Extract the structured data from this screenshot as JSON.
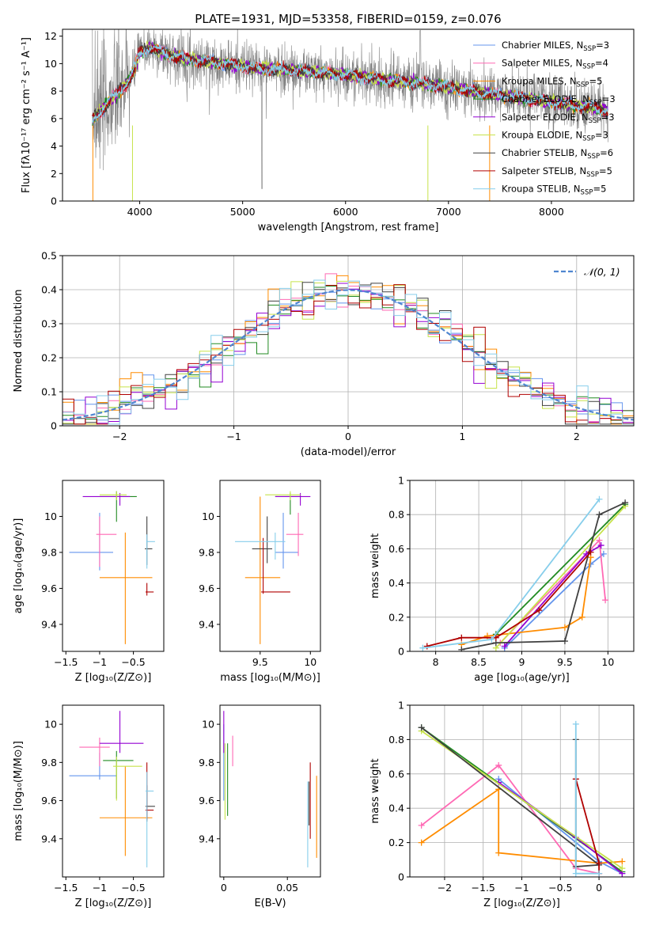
{
  "chart_data": [
    {
      "id": "spectrum",
      "type": "line",
      "title": "PLATE=1931, MJD=53358, FIBERID=0159, z=0.076",
      "xlabel": "wavelength [Angstrom, rest frame]",
      "ylabel": "Flux [fλ10⁻¹⁷ erg cm⁻² s⁻¹ A⁻¹]",
      "xlim": [
        3250,
        8800
      ],
      "ylim": [
        0,
        12.5
      ],
      "xticks": [
        4000,
        5000,
        6000,
        7000,
        8000
      ],
      "yticks": [
        0,
        2,
        4,
        6,
        8,
        10,
        12
      ],
      "grid": false,
      "legend_position": "upper-right",
      "data_color": "#808080",
      "continuum": {
        "x": [
          3540,
          3600,
          3700,
          3800,
          3900,
          3950,
          4000,
          4100,
          4200,
          4300,
          4500,
          4700,
          4900,
          5100,
          5300,
          5500,
          5800,
          6100,
          6400,
          6700,
          7000,
          7300,
          7600,
          7900,
          8200,
          8500,
          8550
        ],
        "y": [
          6.0,
          6.4,
          7.2,
          8.0,
          8.8,
          9.6,
          10.8,
          11.2,
          10.9,
          10.6,
          10.3,
          10.1,
          9.9,
          9.7,
          9.6,
          9.5,
          9.3,
          9.1,
          8.8,
          8.6,
          8.3,
          7.9,
          7.6,
          7.3,
          7.0,
          6.7,
          6.5
        ]
      },
      "series": [
        {
          "name": "Chabrier MILES, N_SSP=3",
          "color": "#6495ed"
        },
        {
          "name": "Salpeter MILES, N_SSP=4",
          "color": "#ff69b4"
        },
        {
          "name": "Kroupa MILES, N_SSP=5",
          "color": "#ff8c00"
        },
        {
          "name": "Chabrier ELODIE, N_SSP=3",
          "color": "#228b22"
        },
        {
          "name": "Salpeter ELODIE, N_SSP=3",
          "color": "#9400d3"
        },
        {
          "name": "Kroupa ELODIE, N_SSP=3",
          "color": "#c7e34b"
        },
        {
          "name": "Chabrier STELIB, N_SSP=6",
          "color": "#404040"
        },
        {
          "name": "Salpeter STELIB, N_SSP=5",
          "color": "#b00000"
        },
        {
          "name": "Kroupa STELIB, N_SSP=5",
          "color": "#87ceeb"
        }
      ]
    },
    {
      "id": "residuals",
      "type": "histogram",
      "xlabel": "(data-model)/error",
      "ylabel": "Normed distribution",
      "xlim": [
        -2.5,
        2.5
      ],
      "ylim": [
        0,
        0.5
      ],
      "xticks": [
        -2,
        -1,
        0,
        1,
        2
      ],
      "yticks": [
        0.0,
        0.1,
        0.2,
        0.3,
        0.4,
        0.5
      ],
      "grid": true,
      "legend_position": "upper-right",
      "legend_label": "𝒩(0, 1)",
      "bin_width": 0.1,
      "normal": {
        "mu": 0,
        "sigma": 1,
        "color": "#4f86d0"
      }
    },
    {
      "id": "age-vs-Z",
      "type": "errorbar",
      "xlabel": "Z [log₁₀(Z/Z⊙)]",
      "ylabel": "age  [log₁₀(age/yr)]",
      "xlim": [
        -1.55,
        -0.05
      ],
      "ylim": [
        9.25,
        10.2
      ],
      "xticks": [
        -1.5,
        -1.0,
        -0.5
      ],
      "yticks": [
        9.4,
        9.6,
        9.8,
        10.0
      ],
      "grid": false,
      "points": [
        {
          "x": -1.0,
          "y": 9.8,
          "xerr": [
            0.45,
            0.2
          ],
          "yerr": [
            0.1,
            0.22
          ],
          "color": "#6495ed"
        },
        {
          "x": -1.0,
          "y": 9.9,
          "xerr": [
            0.05,
            0.25
          ],
          "yerr": [
            0.18,
            0.1
          ],
          "color": "#ff69b4"
        },
        {
          "x": -0.62,
          "y": 9.66,
          "xerr": [
            0.38,
            0.4
          ],
          "yerr": [
            0.37,
            0.25
          ],
          "color": "#ff8c00"
        },
        {
          "x": -0.75,
          "y": 10.11,
          "xerr": [
            0.25,
            0.3
          ],
          "yerr": [
            0.14,
            0.03
          ],
          "color": "#228b22"
        },
        {
          "x": -0.7,
          "y": 10.11,
          "xerr": [
            0.55,
            0.15
          ],
          "yerr": [
            0.05,
            0.02
          ],
          "color": "#9400d3"
        },
        {
          "x": -0.75,
          "y": 10.12,
          "xerr": [
            0.25,
            0.15
          ],
          "yerr": [
            0.03,
            0.02
          ],
          "color": "#c7e34b"
        },
        {
          "x": -0.3,
          "y": 9.82,
          "xerr": [
            0.03,
            0.08
          ],
          "yerr": [
            0.09,
            0.18
          ],
          "color": "#404040"
        },
        {
          "x": -0.3,
          "y": 9.58,
          "xerr": [
            0.02,
            0.1
          ],
          "yerr": [
            0.02,
            0.05
          ],
          "color": "#b00000"
        },
        {
          "x": -0.3,
          "y": 9.86,
          "xerr": [
            0.01,
            0.12
          ],
          "yerr": [
            0.15,
            0.04
          ],
          "color": "#87ceeb"
        }
      ]
    },
    {
      "id": "age-vs-mass",
      "type": "errorbar",
      "xlabel": "mass [log₁₀(M/M⊙)]",
      "ylabel": "",
      "xlim": [
        9.1,
        10.1
      ],
      "ylim": [
        9.25,
        10.2
      ],
      "xticks": [
        9.5,
        10.0
      ],
      "yticks": [
        9.4,
        9.6,
        9.8,
        10.0
      ],
      "grid": false,
      "points": [
        {
          "x": 9.73,
          "y": 9.8,
          "xerr": [
            0.08,
            0.15
          ],
          "yerr": [
            0.09,
            0.22
          ],
          "color": "#6495ed"
        },
        {
          "x": 9.88,
          "y": 9.9,
          "xerr": [
            0.12,
            0.05
          ],
          "yerr": [
            0.12,
            0.12
          ],
          "color": "#ff69b4"
        },
        {
          "x": 9.5,
          "y": 9.66,
          "xerr": [
            0.15,
            0.2
          ],
          "yerr": [
            0.37,
            0.45
          ],
          "color": "#ff8c00"
        },
        {
          "x": 9.8,
          "y": 10.11,
          "xerr": [
            0.15,
            0.1
          ],
          "yerr": [
            0.1,
            0.02
          ],
          "color": "#228b22"
        },
        {
          "x": 9.9,
          "y": 10.11,
          "xerr": [
            0.25,
            0.1
          ],
          "yerr": [
            0.05,
            0.02
          ],
          "color": "#9400d3"
        },
        {
          "x": 9.8,
          "y": 10.12,
          "xerr": [
            0.25,
            0.1
          ],
          "yerr": [
            0.03,
            0.02
          ],
          "color": "#c7e34b"
        },
        {
          "x": 9.57,
          "y": 9.82,
          "xerr": [
            0.15,
            0.05
          ],
          "yerr": [
            0.08,
            0.18
          ],
          "color": "#404040"
        },
        {
          "x": 9.53,
          "y": 9.58,
          "xerr": [
            0.02,
            0.27
          ],
          "yerr": [
            0.01,
            0.3
          ],
          "color": "#b00000"
        },
        {
          "x": 9.65,
          "y": 9.86,
          "xerr": [
            0.4,
            0.1
          ],
          "yerr": [
            0.1,
            0.05
          ],
          "color": "#87ceeb"
        }
      ]
    },
    {
      "id": "weight-vs-age",
      "type": "line",
      "xlabel": "age  [log₁₀(age/yr)]",
      "ylabel": "mass weight",
      "xlim": [
        7.7,
        10.3
      ],
      "ylim": [
        0,
        1.0
      ],
      "xticks": [
        8.0,
        8.5,
        9.0,
        9.5,
        10.0
      ],
      "yticks": [
        0.0,
        0.2,
        0.4,
        0.6,
        0.8,
        1.0
      ],
      "grid": true,
      "series": [
        {
          "color": "#6495ed",
          "x": [
            8.8,
            9.8,
            9.95
          ],
          "y": [
            0.02,
            0.51,
            0.57
          ]
        },
        {
          "color": "#ff69b4",
          "x": [
            8.75,
            9.9,
            9.97
          ],
          "y": [
            0.05,
            0.65,
            0.3
          ]
        },
        {
          "color": "#ff8c00",
          "x": [
            8.3,
            8.6,
            9.5,
            9.7,
            9.8
          ],
          "y": [
            0.04,
            0.09,
            0.14,
            0.2,
            0.55
          ]
        },
        {
          "color": "#228b22",
          "x": [
            8.7,
            10.2
          ],
          "y": [
            0.1,
            0.86
          ]
        },
        {
          "color": "#9400d3",
          "x": [
            8.8,
            9.75,
            9.92
          ],
          "y": [
            0.03,
            0.57,
            0.62
          ]
        },
        {
          "color": "#c7e34b",
          "x": [
            8.7,
            10.2
          ],
          "y": [
            0.02,
            0.85
          ]
        },
        {
          "color": "#404040",
          "x": [
            8.3,
            8.7,
            9.5,
            9.9,
            10.2
          ],
          "y": [
            0.01,
            0.05,
            0.06,
            0.8,
            0.87
          ]
        },
        {
          "color": "#b00000",
          "x": [
            7.9,
            8.3,
            8.7,
            9.2,
            9.8
          ],
          "y": [
            0.03,
            0.08,
            0.08,
            0.24,
            0.58
          ]
        },
        {
          "color": "#87ceeb",
          "x": [
            7.85,
            8.65,
            9.9
          ],
          "y": [
            0.02,
            0.07,
            0.89
          ]
        }
      ]
    },
    {
      "id": "mass-vs-Z",
      "type": "errorbar",
      "xlabel": "Z [log₁₀(Z/Z⊙)]",
      "ylabel": "mass [log₁₀(M/M⊙)]",
      "xlim": [
        -1.55,
        -0.05
      ],
      "ylim": [
        9.2,
        10.1
      ],
      "xticks": [
        -1.5,
        -1.0,
        -0.5
      ],
      "yticks": [
        9.4,
        9.6,
        9.8,
        10.0
      ],
      "grid": false,
      "points": [
        {
          "x": -1.0,
          "y": 9.73,
          "xerr": [
            0.45,
            0.25
          ],
          "yerr": [
            0.02,
            0.12
          ],
          "color": "#6495ed"
        },
        {
          "x": -1.0,
          "y": 9.88,
          "xerr": [
            0.3,
            0.15
          ],
          "yerr": [
            0.1,
            0.05
          ],
          "color": "#ff69b4"
        },
        {
          "x": -0.62,
          "y": 9.51,
          "xerr": [
            0.38,
            0.4
          ],
          "yerr": [
            0.2,
            0.27
          ],
          "color": "#ff8c00"
        },
        {
          "x": -0.75,
          "y": 9.81,
          "xerr": [
            0.2,
            0.25
          ],
          "yerr": [
            0.2,
            0.05
          ],
          "color": "#228b22"
        },
        {
          "x": -0.7,
          "y": 9.9,
          "xerr": [
            0.3,
            0.35
          ],
          "yerr": [
            0.05,
            0.17
          ],
          "color": "#9400d3"
        },
        {
          "x": -0.75,
          "y": 9.78,
          "xerr": [
            0.05,
            0.38
          ],
          "yerr": [
            0.18,
            0.05
          ],
          "color": "#c7e34b"
        },
        {
          "x": -0.3,
          "y": 9.57,
          "xerr": [
            0.02,
            0.12
          ],
          "yerr": [
            0.08,
            0.11
          ],
          "color": "#404040"
        },
        {
          "x": -0.3,
          "y": 9.55,
          "xerr": [
            0.02,
            0.1
          ],
          "yerr": [
            0.05,
            0.25
          ],
          "color": "#b00000"
        },
        {
          "x": -0.3,
          "y": 9.65,
          "xerr": [
            0.02,
            0.1
          ],
          "yerr": [
            0.4,
            0.1
          ],
          "color": "#87ceeb"
        }
      ]
    },
    {
      "id": "mass-vs-ebv",
      "type": "errorbar",
      "xlabel": "E(B-V)",
      "ylabel": "",
      "xlim": [
        -0.003,
        0.076
      ],
      "ylim": [
        9.2,
        10.1
      ],
      "xticks": [
        0.0,
        0.05
      ],
      "yticks": [
        9.4,
        9.6,
        9.8,
        10.0
      ],
      "grid": false,
      "points": [
        {
          "x": 0.0,
          "y": 9.8,
          "yerr": [
            0.2,
            0.2
          ],
          "color": "#6495ed"
        },
        {
          "x": 0.007,
          "y": 9.88,
          "yerr": [
            0.1,
            0.06
          ],
          "color": "#ff69b4"
        },
        {
          "x": 0.073,
          "y": 9.5,
          "yerr": [
            0.2,
            0.23
          ],
          "color": "#ff8c00"
        },
        {
          "x": 0.003,
          "y": 9.8,
          "yerr": [
            0.28,
            0.1
          ],
          "color": "#228b22"
        },
        {
          "x": 0.0,
          "y": 9.9,
          "yerr": [
            0.05,
            0.17
          ],
          "color": "#9400d3"
        },
        {
          "x": 0.001,
          "y": 9.8,
          "yerr": [
            0.3,
            0.1
          ],
          "color": "#c7e34b"
        },
        {
          "x": 0.067,
          "y": 9.57,
          "yerr": [
            0.1,
            0.13
          ],
          "color": "#404040"
        },
        {
          "x": 0.068,
          "y": 9.55,
          "yerr": [
            0.15,
            0.25
          ],
          "color": "#b00000"
        },
        {
          "x": 0.066,
          "y": 9.5,
          "yerr": [
            0.25,
            0.2
          ],
          "color": "#87ceeb"
        }
      ]
    },
    {
      "id": "weight-vs-Z",
      "type": "line",
      "xlabel": "Z [log₁₀(Z/Z⊙)]",
      "ylabel": "mass weight",
      "xlim": [
        -2.45,
        0.45
      ],
      "ylim": [
        0,
        1.0
      ],
      "xticks": [
        -2.0,
        -1.5,
        -1.0,
        -0.5,
        0.0
      ],
      "yticks": [
        0.0,
        0.2,
        0.4,
        0.6,
        0.8,
        1.0
      ],
      "grid": true,
      "series": [
        {
          "color": "#6495ed",
          "x": [
            -1.3,
            0.0,
            0.3
          ],
          "y": [
            0.57,
            0.09,
            0.02
          ]
        },
        {
          "color": "#ff69b4",
          "x": [
            -2.3,
            -1.3,
            -0.3,
            0.0
          ],
          "y": [
            0.3,
            0.65,
            0.05,
            0.02
          ]
        },
        {
          "color": "#ff8c00",
          "x": [
            -2.3,
            -1.3,
            -1.3,
            0.0,
            0.3
          ],
          "y": [
            0.2,
            0.51,
            0.14,
            0.08,
            0.09
          ]
        },
        {
          "color": "#228b22",
          "x": [
            -2.3,
            0.3
          ],
          "y": [
            0.87,
            0.03
          ]
        },
        {
          "color": "#9400d3",
          "x": [
            -1.3,
            -0.3,
            0.3
          ],
          "y": [
            0.55,
            0.23,
            0.02
          ]
        },
        {
          "color": "#c7e34b",
          "x": [
            -2.3,
            0.3
          ],
          "y": [
            0.85,
            0.05
          ]
        },
        {
          "color": "#404040",
          "x": [
            -2.3,
            0.0,
            -0.3,
            -0.3
          ],
          "y": [
            0.87,
            0.07,
            0.06,
            0.8
          ]
        },
        {
          "color": "#b00000",
          "x": [
            -0.3,
            0.0,
            0.0
          ],
          "y": [
            0.57,
            0.08,
            0.02
          ]
        },
        {
          "color": "#87ceeb",
          "x": [
            -0.3,
            -0.3,
            0.0
          ],
          "y": [
            0.89,
            0.02,
            0.02
          ]
        }
      ]
    }
  ]
}
